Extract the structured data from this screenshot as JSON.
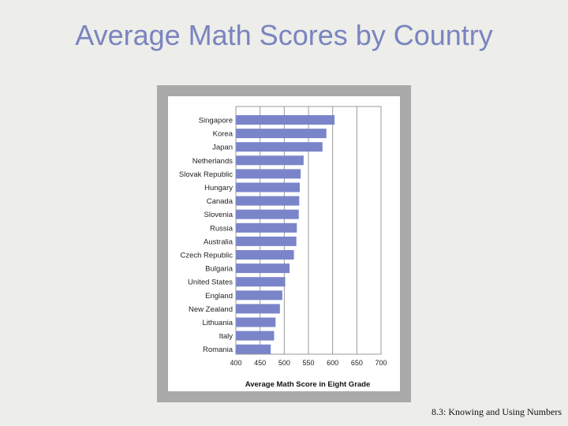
{
  "slide": {
    "title": "Average Math Scores by Country",
    "footer": "8.3: Knowing and Using Numbers"
  },
  "chart_data": {
    "type": "bar",
    "orientation": "horizontal",
    "title": "",
    "xlabel": "Average Math Score in Eight Grade",
    "ylabel": "",
    "categories": [
      "Singapore",
      "Korea",
      "Japan",
      "Netherlands",
      "Slovak Republic",
      "Hungary",
      "Canada",
      "Slovenia",
      "Russia",
      "Australia",
      "Czech Republic",
      "Bulgaria",
      "United States",
      "England",
      "New Zealand",
      "Lithuania",
      "Italy",
      "Romania"
    ],
    "values": [
      604,
      587,
      579,
      540,
      534,
      532,
      531,
      530,
      526,
      525,
      520,
      511,
      502,
      496,
      491,
      482,
      479,
      472
    ],
    "xlim": [
      400,
      700
    ],
    "xticks": [
      400,
      450,
      500,
      550,
      600,
      650,
      700
    ],
    "grid": true,
    "bar_color": "#7a85c9",
    "grid_color": "#999999"
  }
}
